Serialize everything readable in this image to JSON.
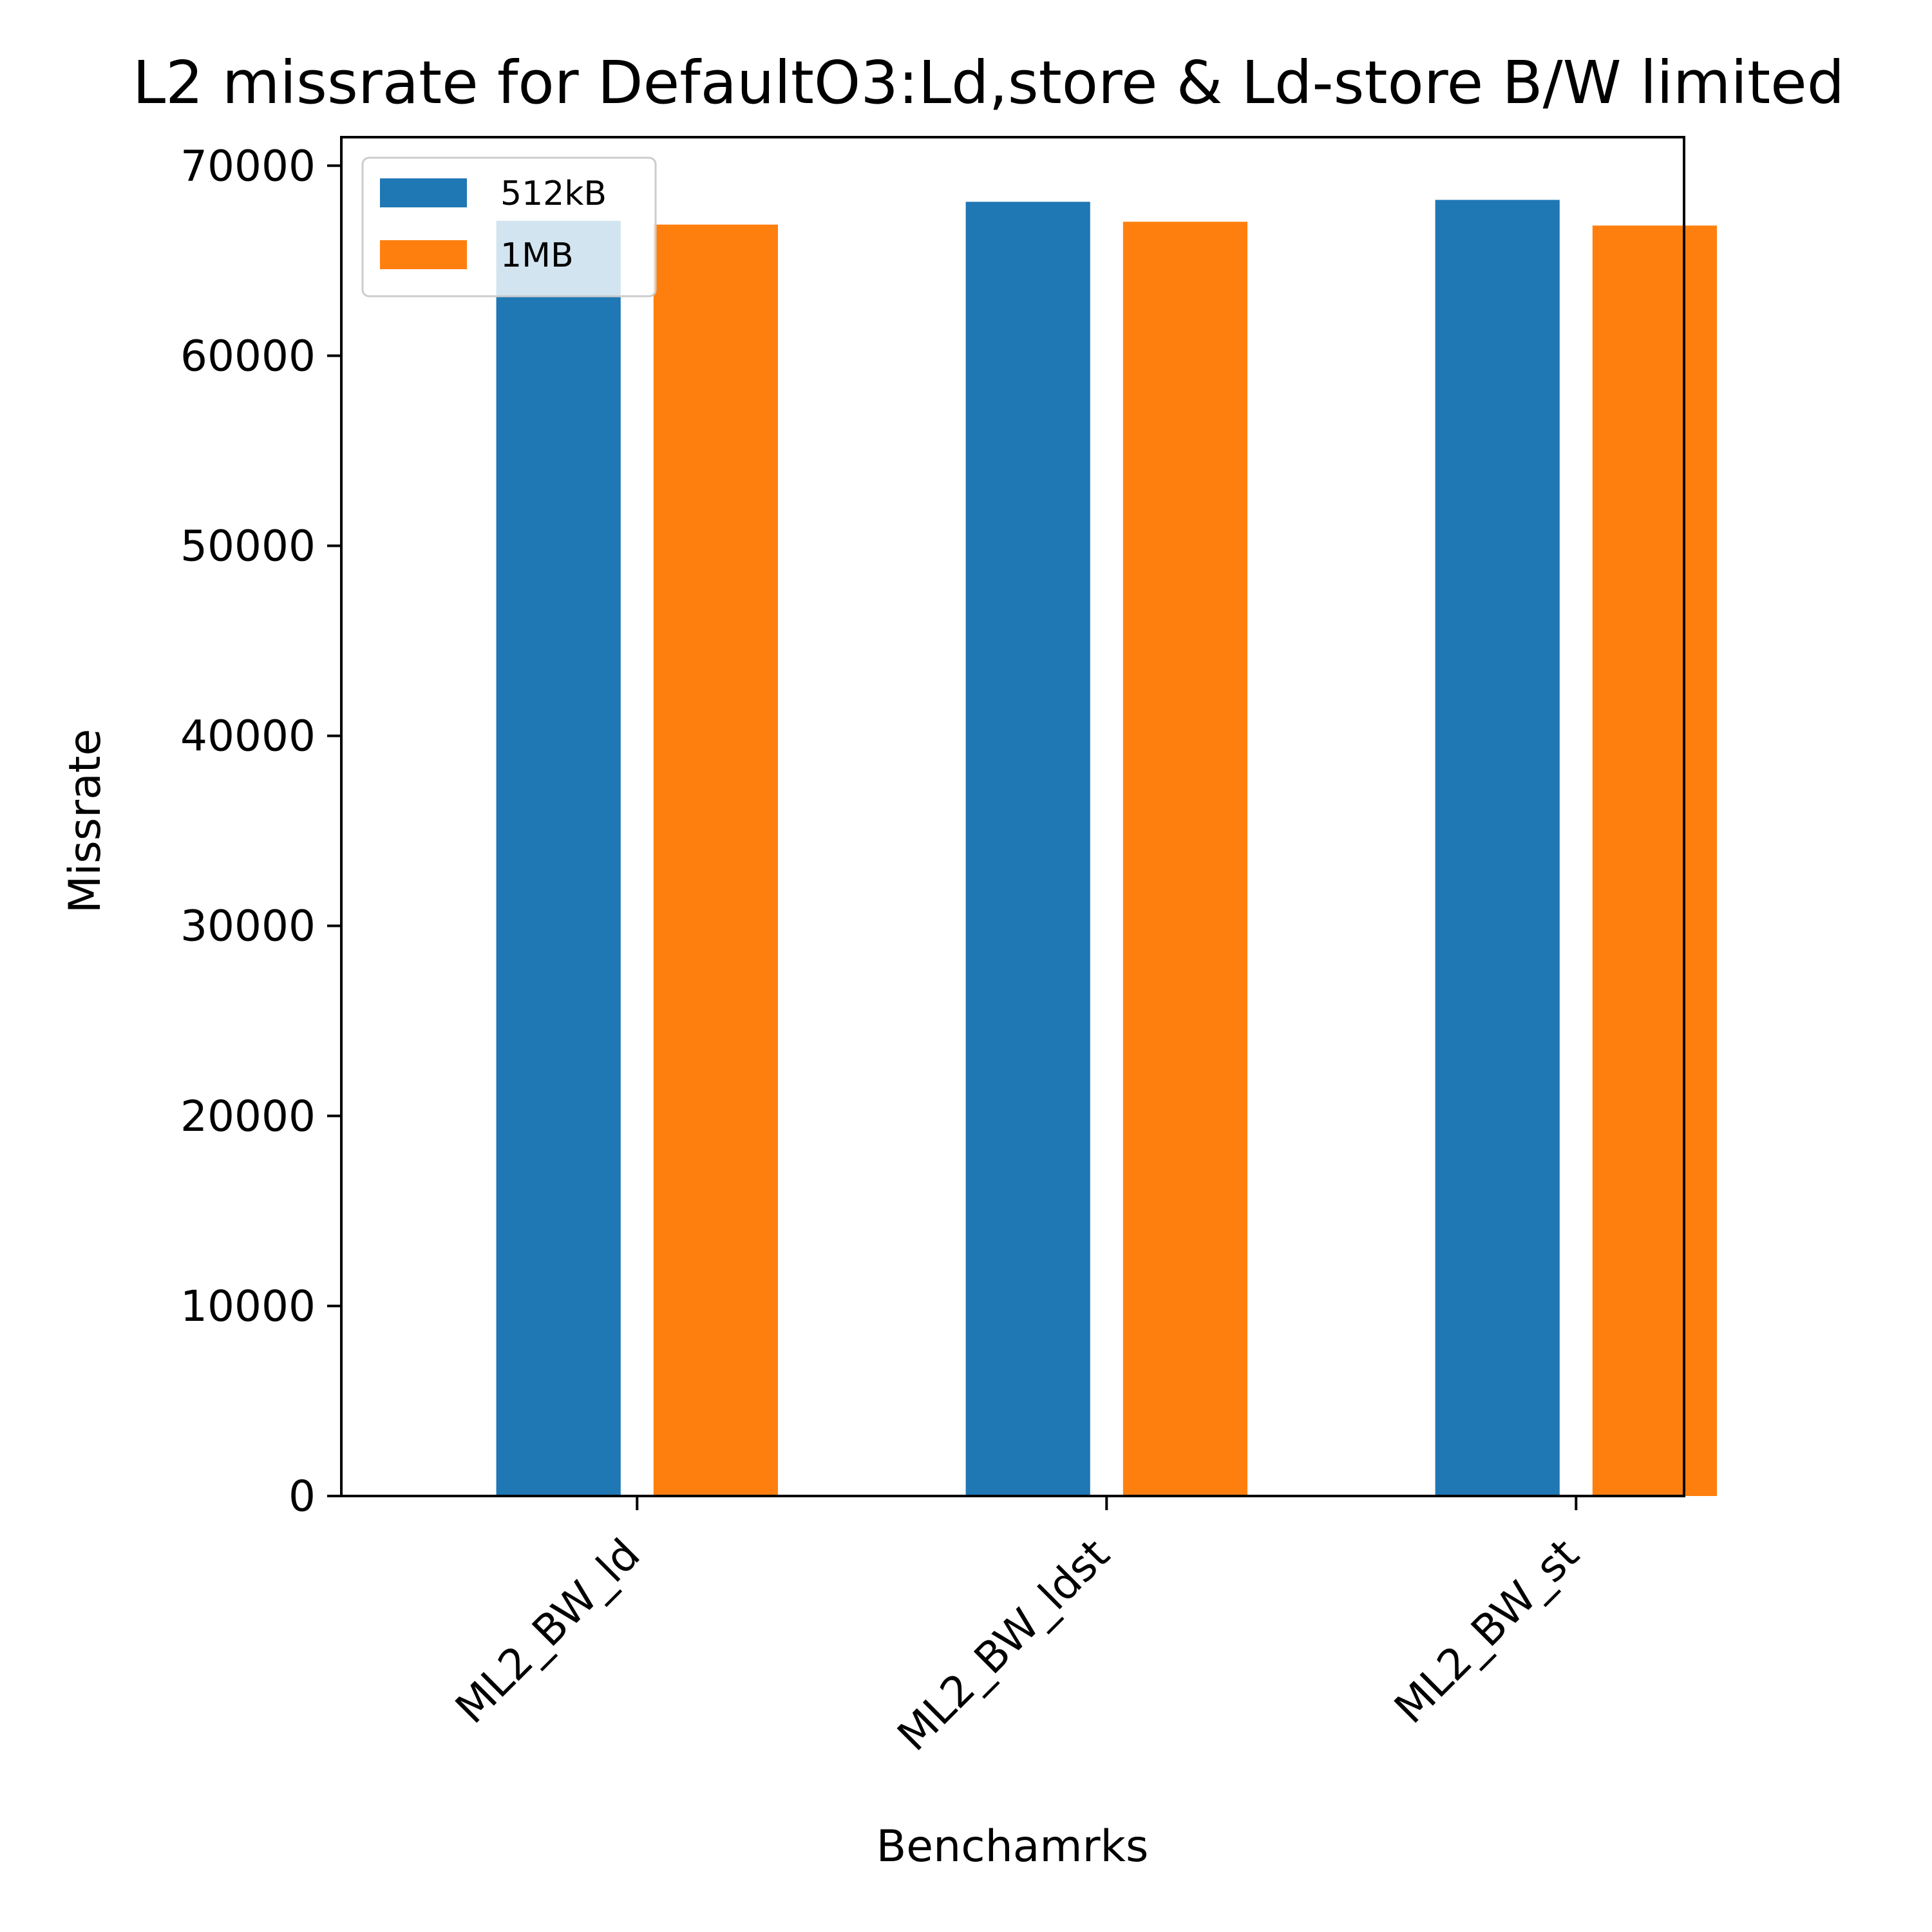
{
  "chart_data": {
    "type": "bar",
    "title": "L2 missrate for DefaultO3:Ld,store & Ld-store B/W limited",
    "xlabel": "Benchamrks",
    "ylabel": "Missrate",
    "categories": [
      "ML2_BW_ld",
      "ML2_BW_ldst",
      "ML2_BW_st"
    ],
    "series": [
      {
        "name": "512kB",
        "color": "#1f77b4",
        "values": [
          67100,
          68100,
          68200
        ]
      },
      {
        "name": "1MB",
        "color": "#ff7f0e",
        "values": [
          66900,
          67050,
          66850
        ]
      }
    ],
    "ylim": [
      0,
      71500
    ],
    "yticks": [
      0,
      10000,
      20000,
      30000,
      40000,
      50000,
      60000,
      70000
    ],
    "legend": "top-left",
    "grid": false
  }
}
